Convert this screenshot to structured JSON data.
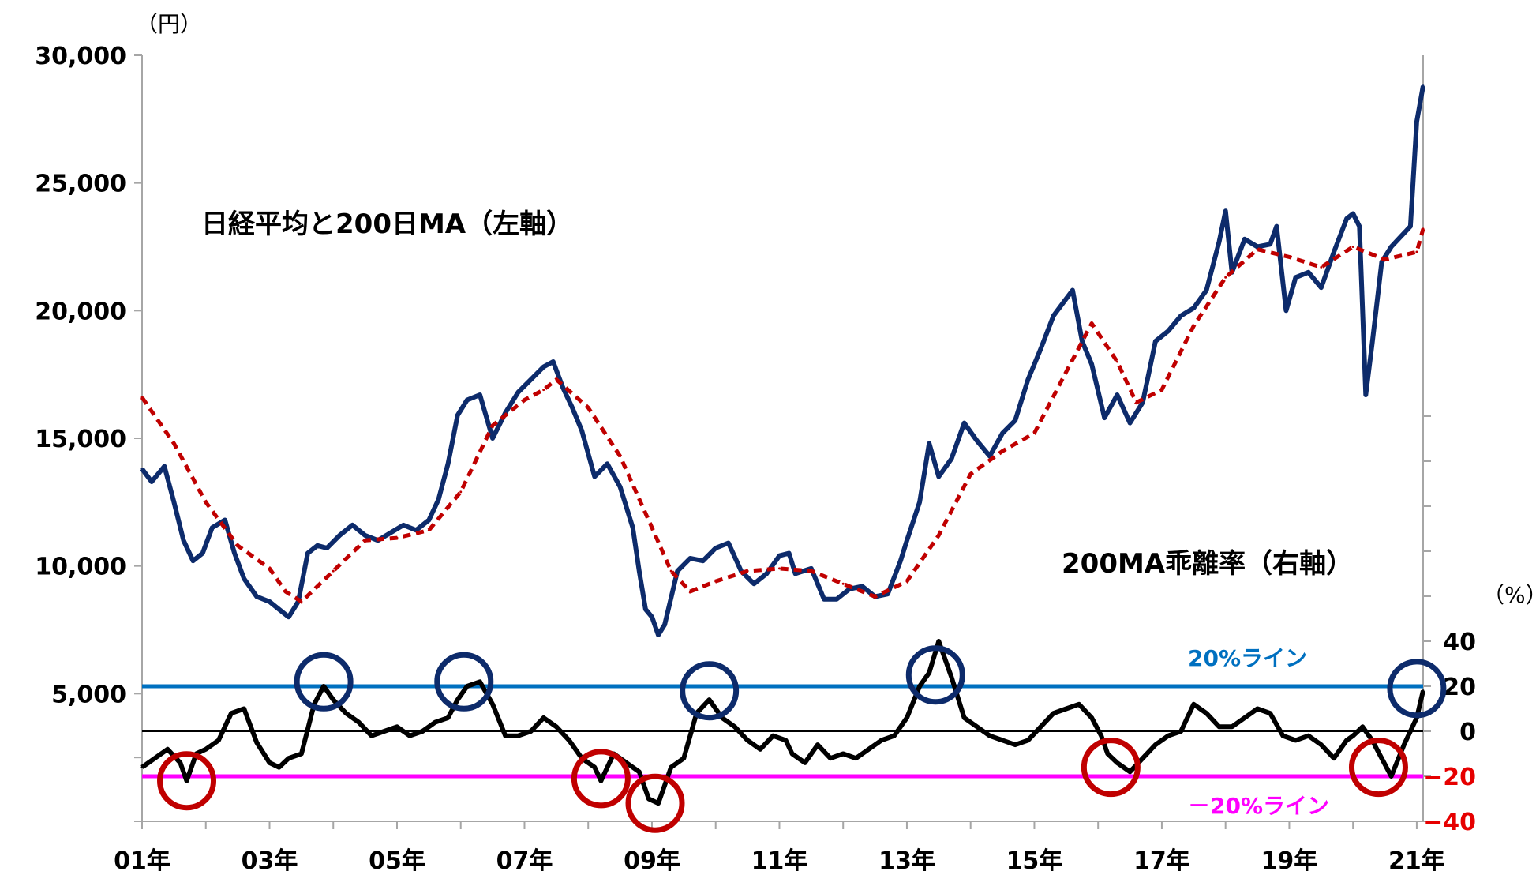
{
  "chart_data": {
    "type": "line",
    "left_axis": {
      "unit": "（円）",
      "ticks": [
        5000,
        10000,
        15000,
        20000,
        25000,
        30000
      ],
      "tick_labels": [
        "5,000",
        "10,000",
        "15,000",
        "20,000",
        "25,000",
        "30,000"
      ],
      "ylim": [
        0,
        30000
      ]
    },
    "right_axis": {
      "unit": "（%）",
      "ticks": [
        -40,
        -20,
        0,
        20,
        40
      ],
      "tick_labels": [
        "−40",
        "−20",
        "0",
        "20",
        "40"
      ],
      "negative_label_color": "#e60000",
      "ylim": [
        -40,
        40
      ]
    },
    "x_axis": {
      "tick_labels": [
        "01年",
        "03年",
        "05年",
        "07年",
        "09年",
        "11年",
        "13年",
        "15年",
        "17年",
        "19年",
        "21年"
      ],
      "years": [
        2001,
        2003,
        2005,
        2007,
        2009,
        2011,
        2013,
        2015,
        2017,
        2019,
        2021
      ],
      "range": [
        2001.0,
        2021.1
      ]
    },
    "annotations": {
      "upper_title": "日経平均と200日MA（左軸）",
      "lower_title": "200MA乖離率（右軸）",
      "plus20_label": "20%ライン",
      "minus20_label": "－20%ライン"
    },
    "reference_lines": [
      {
        "name": "20%ライン",
        "value": 20,
        "color": "#0070c0"
      },
      {
        "name": "－20%ライン",
        "value": -20,
        "color": "#ff00ff"
      },
      {
        "name": "0",
        "value": 0,
        "color": "#000000"
      }
    ],
    "series": [
      {
        "name": "日経平均",
        "axis": "left",
        "color": "#0d2b6b",
        "x": [
          2001.0,
          2001.15,
          2001.35,
          2001.5,
          2001.65,
          2001.8,
          2001.95,
          2002.1,
          2002.3,
          2002.45,
          2002.6,
          2002.8,
          2003.0,
          2003.15,
          2003.3,
          2003.45,
          2003.6,
          2003.75,
          2003.9,
          2004.1,
          2004.3,
          2004.5,
          2004.7,
          2004.9,
          2005.1,
          2005.3,
          2005.5,
          2005.65,
          2005.8,
          2005.95,
          2006.1,
          2006.3,
          2006.5,
          2006.7,
          2006.9,
          2007.1,
          2007.3,
          2007.45,
          2007.6,
          2007.75,
          2007.9,
          2008.1,
          2008.3,
          2008.5,
          2008.7,
          2008.8,
          2008.9,
          2009.0,
          2009.1,
          2009.2,
          2009.4,
          2009.6,
          2009.8,
          2010.0,
          2010.2,
          2010.4,
          2010.6,
          2010.8,
          2011.0,
          2011.15,
          2011.25,
          2011.5,
          2011.7,
          2011.9,
          2012.1,
          2012.3,
          2012.5,
          2012.7,
          2012.9,
          2013.0,
          2013.2,
          2013.35,
          2013.5,
          2013.7,
          2013.9,
          2014.1,
          2014.3,
          2014.5,
          2014.7,
          2014.9,
          2015.1,
          2015.3,
          2015.45,
          2015.6,
          2015.75,
          2015.9,
          2016.1,
          2016.3,
          2016.5,
          2016.7,
          2016.9,
          2017.1,
          2017.3,
          2017.5,
          2017.7,
          2017.9,
          2018.0,
          2018.1,
          2018.3,
          2018.5,
          2018.7,
          2018.8,
          2018.95,
          2019.1,
          2019.3,
          2019.5,
          2019.7,
          2019.9,
          2020.0,
          2020.1,
          2020.2,
          2020.3,
          2020.45,
          2020.6,
          2020.75,
          2020.9,
          2021.0,
          2021.1
        ],
        "values": [
          13800,
          13300,
          13900,
          12500,
          11000,
          10200,
          10500,
          11500,
          11800,
          10500,
          9500,
          8800,
          8600,
          8300,
          8000,
          8600,
          10500,
          10800,
          10700,
          11200,
          11600,
          11200,
          11000,
          11300,
          11600,
          11400,
          11800,
          12600,
          14000,
          15900,
          16500,
          16700,
          15000,
          16000,
          16800,
          17300,
          17800,
          18000,
          17000,
          16200,
          15300,
          13500,
          14000,
          13100,
          11500,
          9800,
          8300,
          8000,
          7300,
          7700,
          9800,
          10300,
          10200,
          10700,
          10900,
          9800,
          9300,
          9700,
          10400,
          10500,
          9700,
          9900,
          8700,
          8700,
          9100,
          9200,
          8800,
          8900,
          10200,
          11000,
          12500,
          14800,
          13500,
          14200,
          15600,
          14900,
          14300,
          15200,
          15700,
          17300,
          18500,
          19800,
          20300,
          20800,
          18800,
          17900,
          15800,
          16700,
          15600,
          16400,
          18800,
          19200,
          19800,
          20100,
          20800,
          22700,
          23900,
          21500,
          22800,
          22500,
          22600,
          23300,
          20000,
          21300,
          21500,
          20900,
          22300,
          23600,
          23800,
          23300,
          16700,
          18700,
          21900,
          22500,
          22900,
          23300,
          27400,
          28800
        ]
      },
      {
        "name": "200日MA",
        "axis": "left",
        "color": "#c00000",
        "x": [
          2001.0,
          2001.5,
          2002.0,
          2002.5,
          2003.0,
          2003.25,
          2003.5,
          2004.0,
          2004.5,
          2005.0,
          2005.5,
          2006.0,
          2006.5,
          2007.0,
          2007.3,
          2007.5,
          2008.0,
          2008.5,
          2009.0,
          2009.3,
          2009.6,
          2010.0,
          2010.5,
          2011.0,
          2011.5,
          2012.0,
          2012.5,
          2013.0,
          2013.5,
          2014.0,
          2014.5,
          2015.0,
          2015.5,
          2015.9,
          2016.3,
          2016.6,
          2017.0,
          2017.5,
          2018.0,
          2018.5,
          2019.0,
          2019.5,
          2020.0,
          2020.5,
          2021.0,
          2021.1
        ],
        "values": [
          16600,
          14800,
          12500,
          10800,
          9900,
          9000,
          8600,
          9800,
          11000,
          11100,
          11400,
          12900,
          15500,
          16500,
          16900,
          17300,
          16200,
          14300,
          11500,
          9800,
          9000,
          9400,
          9800,
          9900,
          9800,
          9300,
          8800,
          9400,
          11200,
          13600,
          14500,
          15200,
          17600,
          19500,
          18000,
          16400,
          16900,
          19400,
          21300,
          22400,
          22100,
          21700,
          22500,
          22000,
          22300,
          23200
        ]
      },
      {
        "name": "200MA乖離率",
        "axis": "right",
        "color": "#000000",
        "x": [
          2001.0,
          2001.2,
          2001.4,
          2001.6,
          2001.7,
          2001.85,
          2002.0,
          2002.2,
          2002.4,
          2002.6,
          2002.8,
          2003.0,
          2003.15,
          2003.3,
          2003.5,
          2003.7,
          2003.85,
          2004.0,
          2004.2,
          2004.4,
          2004.6,
          2004.8,
          2005.0,
          2005.2,
          2005.4,
          2005.6,
          2005.8,
          2005.95,
          2006.1,
          2006.3,
          2006.5,
          2006.7,
          2006.9,
          2007.1,
          2007.3,
          2007.5,
          2007.7,
          2007.9,
          2008.1,
          2008.2,
          2008.4,
          2008.6,
          2008.8,
          2008.95,
          2009.1,
          2009.3,
          2009.5,
          2009.7,
          2009.9,
          2010.1,
          2010.3,
          2010.5,
          2010.7,
          2010.9,
          2011.1,
          2011.2,
          2011.4,
          2011.6,
          2011.8,
          2012.0,
          2012.2,
          2012.4,
          2012.6,
          2012.8,
          2013.0,
          2013.2,
          2013.35,
          2013.5,
          2013.7,
          2013.9,
          2014.1,
          2014.3,
          2014.5,
          2014.7,
          2014.9,
          2015.1,
          2015.3,
          2015.5,
          2015.7,
          2015.9,
          2016.05,
          2016.15,
          2016.3,
          2016.5,
          2016.7,
          2016.9,
          2017.1,
          2017.3,
          2017.5,
          2017.7,
          2017.9,
          2018.1,
          2018.3,
          2018.5,
          2018.7,
          2018.9,
          2019.1,
          2019.3,
          2019.5,
          2019.7,
          2019.9,
          2020.0,
          2020.15,
          2020.3,
          2020.45,
          2020.6,
          2020.8,
          2021.0,
          2021.1
        ],
        "values": [
          -16,
          -12,
          -8,
          -14,
          -22,
          -10,
          -8,
          -4,
          8,
          10,
          -5,
          -14,
          -16,
          -12,
          -10,
          12,
          20,
          14,
          8,
          4,
          -2,
          0,
          2,
          -2,
          0,
          4,
          6,
          14,
          20,
          22,
          12,
          -2,
          -2,
          0,
          6,
          2,
          -4,
          -12,
          -16,
          -22,
          -10,
          -14,
          -18,
          -30,
          -32,
          -16,
          -12,
          8,
          14,
          6,
          2,
          -4,
          -8,
          -2,
          -4,
          -10,
          -14,
          -6,
          -12,
          -10,
          -12,
          -8,
          -4,
          -2,
          6,
          20,
          26,
          40,
          24,
          6,
          2,
          -2,
          -4,
          -6,
          -4,
          2,
          8,
          10,
          12,
          6,
          -2,
          -10,
          -14,
          -18,
          -12,
          -6,
          -2,
          0,
          12,
          8,
          2,
          2,
          6,
          10,
          8,
          -2,
          -4,
          -2,
          -6,
          -12,
          -4,
          -2,
          2,
          -4,
          -12,
          -20,
          -6,
          6,
          18
        ]
      }
    ],
    "highlight_circles": [
      {
        "year": 2001.7,
        "value": -22,
        "color": "#c00000"
      },
      {
        "year": 2003.85,
        "value": 22,
        "color": "#0d2b6b"
      },
      {
        "year": 2006.05,
        "value": 22,
        "color": "#0d2b6b"
      },
      {
        "year": 2008.2,
        "value": -21,
        "color": "#c00000"
      },
      {
        "year": 2009.05,
        "value": -32,
        "color": "#c00000"
      },
      {
        "year": 2009.9,
        "value": 18,
        "color": "#0d2b6b"
      },
      {
        "year": 2013.45,
        "value": 25,
        "color": "#0d2b6b"
      },
      {
        "year": 2016.2,
        "value": -16,
        "color": "#c00000"
      },
      {
        "year": 2020.4,
        "value": -16,
        "color": "#c00000"
      },
      {
        "year": 2021.0,
        "value": 19,
        "color": "#0d2b6b"
      }
    ],
    "grid": false,
    "legend": "none"
  }
}
